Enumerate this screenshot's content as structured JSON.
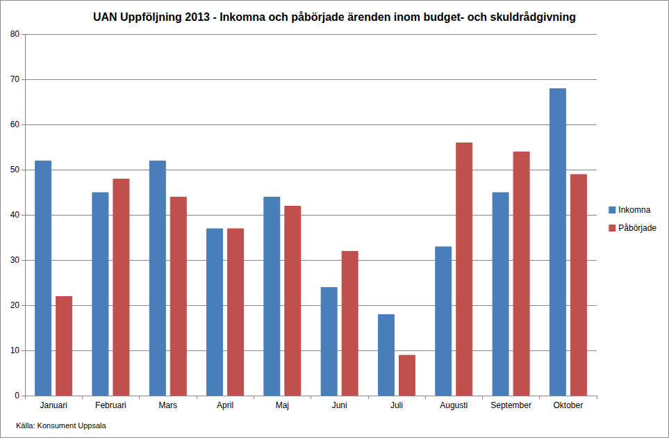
{
  "chart_data": {
    "type": "bar",
    "title": "UAN Uppföljning 2013 - Inkomna och påbörjade ärenden inom budget- och skuldrådgivning",
    "annotations": [
      "Källa: Konsument Uppsala"
    ],
    "categories": [
      "Januari",
      "Februari",
      "Mars",
      "April",
      "Maj",
      "Juni",
      "Juli",
      "Augusti",
      "September",
      "Oktober"
    ],
    "series": [
      {
        "name": "Inkomna",
        "color": "#4a7ebb",
        "values": [
          52,
          45,
          52,
          37,
          44,
          24,
          18,
          33,
          45,
          68
        ]
      },
      {
        "name": "Påbörjade",
        "color": "#c0504d",
        "values": [
          22,
          48,
          44,
          37,
          42,
          32,
          9,
          56,
          54,
          49
        ]
      }
    ],
    "ylim": [
      0,
      80
    ],
    "yticks": [
      0,
      10,
      20,
      30,
      40,
      50,
      60,
      70,
      80
    ],
    "grid": true,
    "legend": "right"
  }
}
